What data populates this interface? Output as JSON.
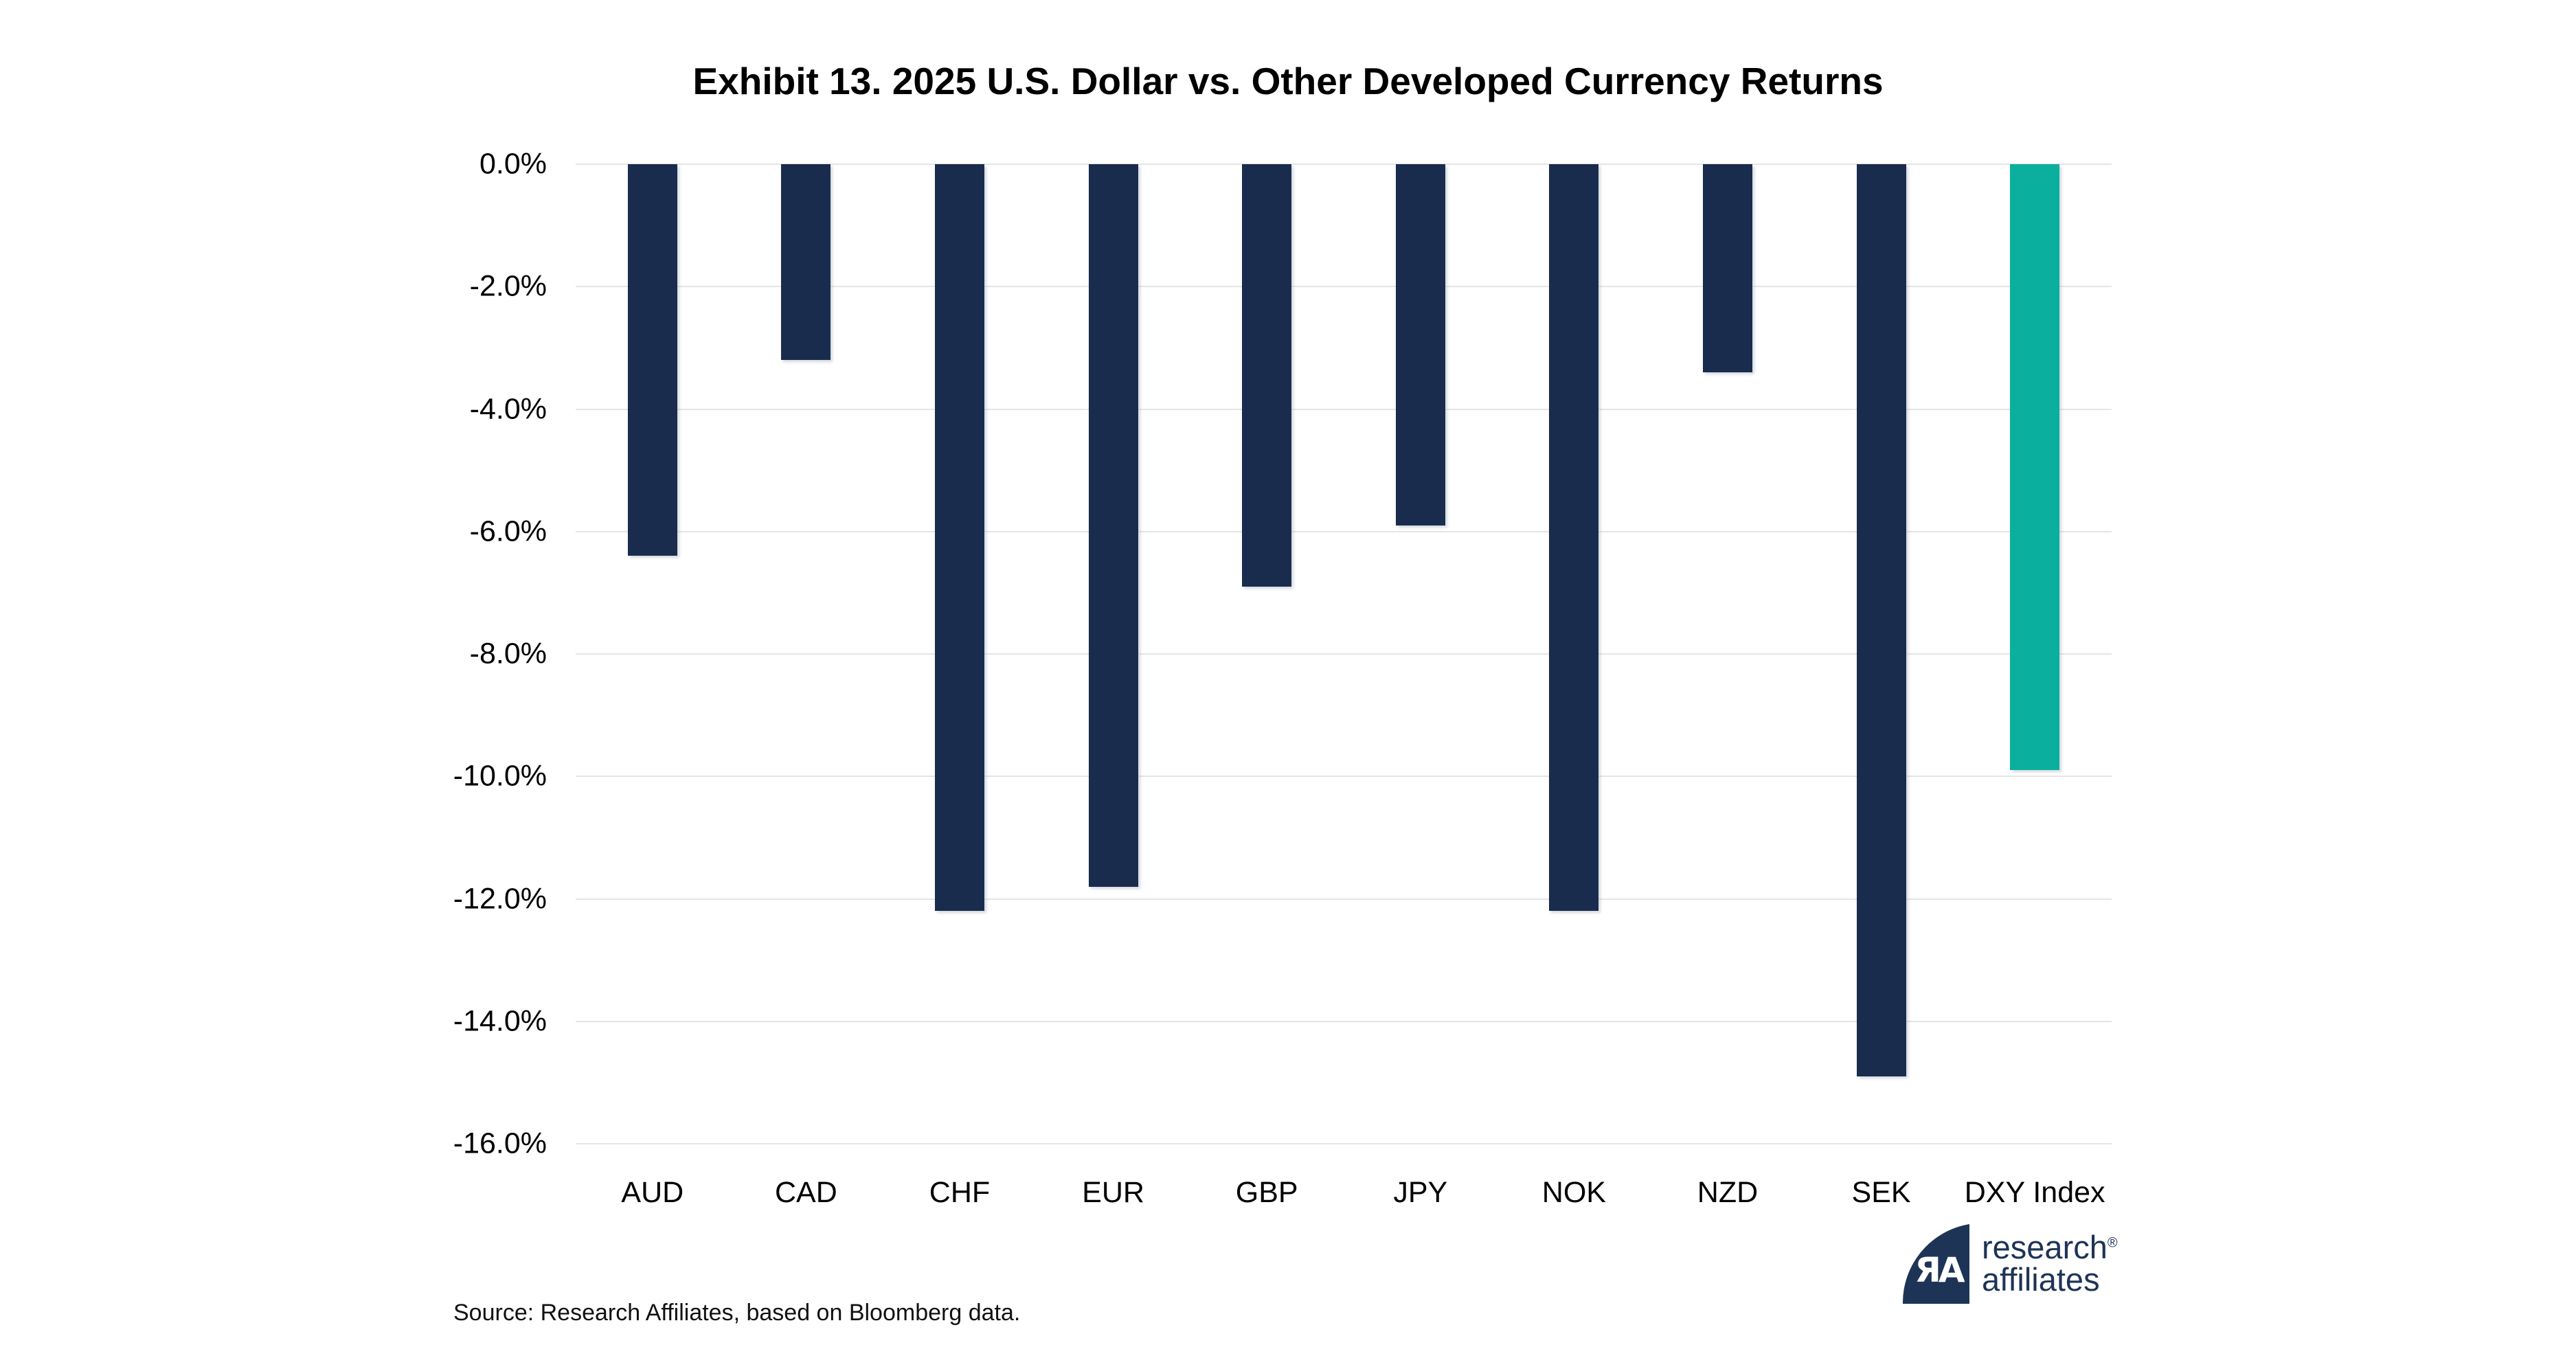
{
  "title": "Exhibit 13. 2025 U.S. Dollar vs. Other Developed Currency Returns",
  "source": "Source: Research Affiliates, based on Bloomberg data.",
  "logo": {
    "monogram": "ЯA",
    "line1": "research",
    "line2": "affiliates",
    "registered": "®"
  },
  "colors": {
    "bar": "#192C4D",
    "highlight": "#0BAF9D",
    "gridline": "#E3E5E7",
    "logo_navy": "#1E3456",
    "text": "#000000"
  },
  "chart_data": {
    "type": "bar",
    "title": "Exhibit 13. 2025 U.S. Dollar vs. Other Developed Currency Returns",
    "categories": [
      "AUD",
      "CAD",
      "CHF",
      "EUR",
      "GBP",
      "JPY",
      "NOK",
      "NZD",
      "SEK",
      "DXY Index"
    ],
    "values": [
      -6.4,
      -3.2,
      -12.2,
      -11.8,
      -6.9,
      -5.9,
      -12.2,
      -3.4,
      -14.9,
      -9.9
    ],
    "highlight_category": "DXY Index",
    "xlabel": "",
    "ylabel": "",
    "ylim": [
      -16,
      0
    ],
    "y_ticks": [
      "0.0%",
      "-2.0%",
      "-4.0%",
      "-6.0%",
      "-8.0%",
      "-10.0%",
      "-12.0%",
      "-14.0%",
      "-16.0%"
    ],
    "grid": true,
    "legend": false
  }
}
